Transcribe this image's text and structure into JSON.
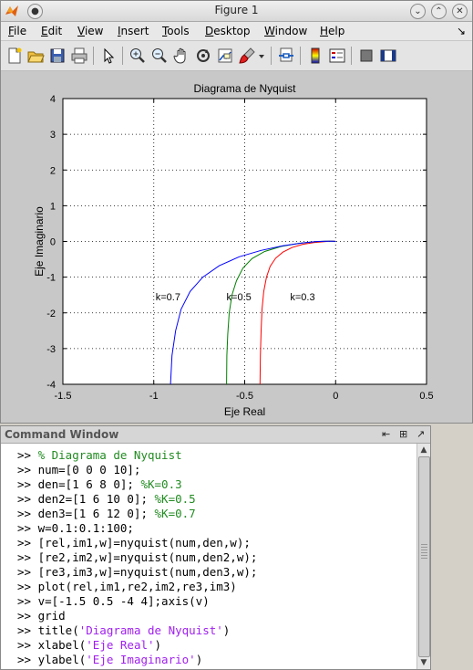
{
  "window": {
    "title": "Figure 1",
    "controls": [
      "⌄",
      "⌃",
      "✕"
    ]
  },
  "menu": [
    {
      "label": "File",
      "u": "F",
      "rest": "ile"
    },
    {
      "label": "Edit",
      "u": "E",
      "rest": "dit"
    },
    {
      "label": "View",
      "u": "V",
      "rest": "iew"
    },
    {
      "label": "Insert",
      "u": "I",
      "rest": "nsert"
    },
    {
      "label": "Tools",
      "u": "T",
      "rest": "ools"
    },
    {
      "label": "Desktop",
      "u": "D",
      "rest": "esktop"
    },
    {
      "label": "Window",
      "u": "W",
      "rest": "indow"
    },
    {
      "label": "Help",
      "u": "H",
      "rest": "elp"
    }
  ],
  "toolbar": [
    "new-figure-icon",
    "open-file-icon",
    "save-icon",
    "print-icon",
    "pointer-icon",
    "zoom-in-icon",
    "zoom-out-icon",
    "pan-hand-icon",
    "rotate-3d-icon",
    "data-cursor-icon",
    "brush-icon",
    "dropdown-arrow-icon",
    "link-plot-icon",
    "colorbar-icon",
    "legend-icon",
    "hide-plot-tools-icon",
    "show-plot-tools-icon"
  ],
  "chart_data": {
    "type": "line",
    "title": "Diagrama de Nyquist",
    "xlabel": "Eje Real",
    "ylabel": "Eje Imaginario",
    "xlim": [
      -1.5,
      0.5
    ],
    "ylim": [
      -4,
      4
    ],
    "xticks": [
      "-1.5",
      "-1",
      "-0.5",
      "0",
      "0.5"
    ],
    "yticks": [
      "4",
      "3",
      "2",
      "1",
      "0",
      "-1",
      "-2",
      "-3",
      "-4"
    ],
    "grid": true,
    "series": [
      {
        "color": "#ff0000",
        "x": [
          -0.416,
          -0.414,
          -0.41,
          -0.405,
          -0.395,
          -0.38,
          -0.36,
          -0.33,
          -0.29,
          -0.24,
          -0.18,
          -0.12,
          -0.07,
          -0.035,
          -0.012,
          -0.002,
          0.0
        ],
        "y": [
          -4.0,
          -3.2,
          -2.5,
          -1.9,
          -1.4,
          -1.0,
          -0.7,
          -0.47,
          -0.3,
          -0.17,
          -0.08,
          -0.03,
          -0.01,
          0.004,
          0.006,
          0.002,
          0.0
        ]
      },
      {
        "color": "#008000",
        "x": [
          -0.6,
          -0.598,
          -0.593,
          -0.585,
          -0.57,
          -0.545,
          -0.51,
          -0.46,
          -0.39,
          -0.3,
          -0.2,
          -0.12,
          -0.06,
          -0.025,
          -0.006,
          0.0
        ],
        "y": [
          -4.0,
          -3.2,
          -2.6,
          -2.0,
          -1.5,
          -1.1,
          -0.75,
          -0.48,
          -0.28,
          -0.14,
          -0.05,
          -0.01,
          0.005,
          0.006,
          0.002,
          0.0
        ]
      },
      {
        "color": "#0000ff",
        "x": [
          -0.908,
          -0.9,
          -0.88,
          -0.85,
          -0.8,
          -0.73,
          -0.64,
          -0.53,
          -0.41,
          -0.29,
          -0.18,
          -0.1,
          -0.045,
          -0.015,
          -0.003,
          0.0
        ],
        "y": [
          -4.0,
          -3.2,
          -2.5,
          -1.9,
          -1.4,
          -1.0,
          -0.68,
          -0.43,
          -0.25,
          -0.12,
          -0.04,
          0.0,
          0.008,
          0.006,
          0.002,
          0.0
        ]
      }
    ],
    "annotations": [
      {
        "text": "k=0.7",
        "x": -0.99,
        "y": -1.55
      },
      {
        "text": "k=0.5",
        "x": -0.6,
        "y": -1.55
      },
      {
        "text": "k=0.3",
        "x": -0.25,
        "y": -1.55
      }
    ]
  },
  "command_window": {
    "title": "Command Window",
    "controls": [
      "⇤",
      "⊞",
      "↗"
    ],
    "lines": [
      [
        {
          "t": ">> ",
          "c": "prompt"
        },
        {
          "t": "% Diagrama de Nyquist",
          "c": "comment"
        }
      ],
      [
        {
          "t": ">> ",
          "c": "prompt"
        },
        {
          "t": "num=[0 0 0 10];",
          "c": "code"
        }
      ],
      [
        {
          "t": ">> ",
          "c": "prompt"
        },
        {
          "t": "den=[1 6 8 0]; ",
          "c": "code"
        },
        {
          "t": "%K=0.3",
          "c": "comment"
        }
      ],
      [
        {
          "t": ">> ",
          "c": "prompt"
        },
        {
          "t": "den2=[1 6 10 0]; ",
          "c": "code"
        },
        {
          "t": "%K=0.5",
          "c": "comment"
        }
      ],
      [
        {
          "t": ">> ",
          "c": "prompt"
        },
        {
          "t": "den3=[1 6 12 0]; ",
          "c": "code"
        },
        {
          "t": "%K=0.7",
          "c": "comment"
        }
      ],
      [
        {
          "t": ">> ",
          "c": "prompt"
        },
        {
          "t": "w=0.1:0.1:100;",
          "c": "code"
        }
      ],
      [
        {
          "t": ">> ",
          "c": "prompt"
        },
        {
          "t": "[rel,im1,w]=nyquist(num,den,w);",
          "c": "code"
        }
      ],
      [
        {
          "t": ">> ",
          "c": "prompt"
        },
        {
          "t": "[re2,im2,w]=nyquist(num,den2,w);",
          "c": "code"
        }
      ],
      [
        {
          "t": ">> ",
          "c": "prompt"
        },
        {
          "t": "[re3,im3,w]=nyquist(num,den3,w);",
          "c": "code"
        }
      ],
      [
        {
          "t": ">> ",
          "c": "prompt"
        },
        {
          "t": "plot(rel,im1,re2,im2,re3,im3)",
          "c": "code"
        }
      ],
      [
        {
          "t": ">> ",
          "c": "prompt"
        },
        {
          "t": "v=[-1.5 0.5 -4 4];axis(v)",
          "c": "code"
        }
      ],
      [
        {
          "t": ">> ",
          "c": "prompt"
        },
        {
          "t": "grid",
          "c": "code"
        }
      ],
      [
        {
          "t": ">> ",
          "c": "prompt"
        },
        {
          "t": "title(",
          "c": "code"
        },
        {
          "t": "'Diagrama de Nyquist'",
          "c": "str"
        },
        {
          "t": ")",
          "c": "code"
        }
      ],
      [
        {
          "t": ">> ",
          "c": "prompt"
        },
        {
          "t": "xlabel(",
          "c": "code"
        },
        {
          "t": "'Eje Real'",
          "c": "str"
        },
        {
          "t": ")",
          "c": "code"
        }
      ],
      [
        {
          "t": ">> ",
          "c": "prompt"
        },
        {
          "t": "ylabel(",
          "c": "code"
        },
        {
          "t": "'Eje Imaginario'",
          "c": "str"
        },
        {
          "t": ")",
          "c": "code"
        }
      ]
    ]
  }
}
